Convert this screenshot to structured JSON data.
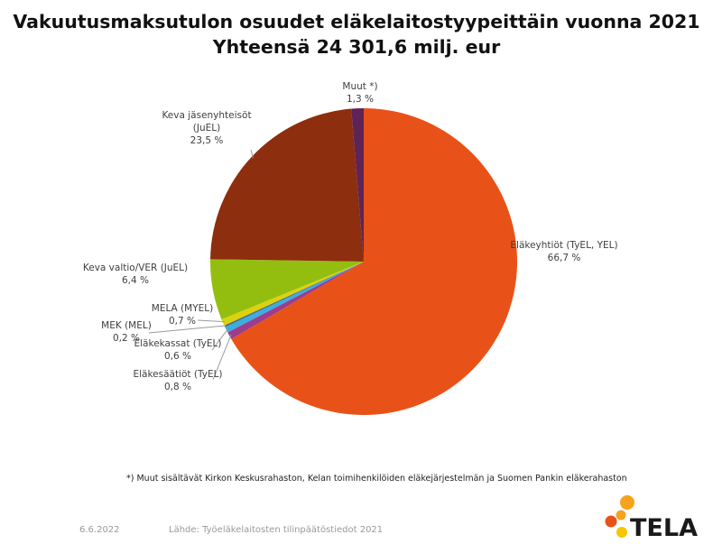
{
  "chart_data": {
    "type": "pie",
    "title": "Vakuutusmaksutulon osuudet eläkelaitostyypeittäin vuonna 2021",
    "subtitle": "Yhteensä 24 301,6 milj. eur",
    "slices": [
      {
        "label_lines": [
          "Eläkeyhtiöt (TyEL, YEL)"
        ],
        "value_label": "66,7 %",
        "value": 66.7,
        "color": "#E85218"
      },
      {
        "label_lines": [
          "Eläkesäätiöt (TyEL)"
        ],
        "value_label": "0,8 %",
        "value": 0.8,
        "color": "#9C3D8E"
      },
      {
        "label_lines": [
          "Eläkekassat (TyEL)"
        ],
        "value_label": "0,6 %",
        "value": 0.6,
        "color": "#3AAFDD"
      },
      {
        "label_lines": [
          "MEK (MEL)"
        ],
        "value_label": "0,2 %",
        "value": 0.2,
        "color": "#4F6C8E"
      },
      {
        "label_lines": [
          "MELA (MYEL)"
        ],
        "value_label": "0,7 %",
        "value": 0.7,
        "color": "#DCD20C"
      },
      {
        "label_lines": [
          "Keva valtio/VER (JuEL)"
        ],
        "value_label": "6,4 %",
        "value": 6.4,
        "color": "#94BE0F"
      },
      {
        "label_lines": [
          "Keva jäsenyhteisöt",
          "(JuEL)"
        ],
        "value_label": "23,5 %",
        "value": 23.5,
        "color": "#8D2E0E"
      },
      {
        "label_lines": [
          "Muut *)"
        ],
        "value_label": "1,3 %",
        "value": 1.3,
        "color": "#5F2455"
      }
    ]
  },
  "footnote": "*) Muut sisältävät Kirkon Keskusrahaston, Kelan toimihenkilöiden eläkejärjestelmän ja Suomen Pankin eläkerahaston",
  "footer": {
    "date": "6.6.2022",
    "source": "Lähde: Työeläkelaitosten tilinpäätöstiedot 2021"
  },
  "logo": {
    "text": "TELA",
    "dot_colors": [
      "#F7A21B",
      "#F7A21B",
      "#E85218",
      "#F7C600"
    ]
  }
}
